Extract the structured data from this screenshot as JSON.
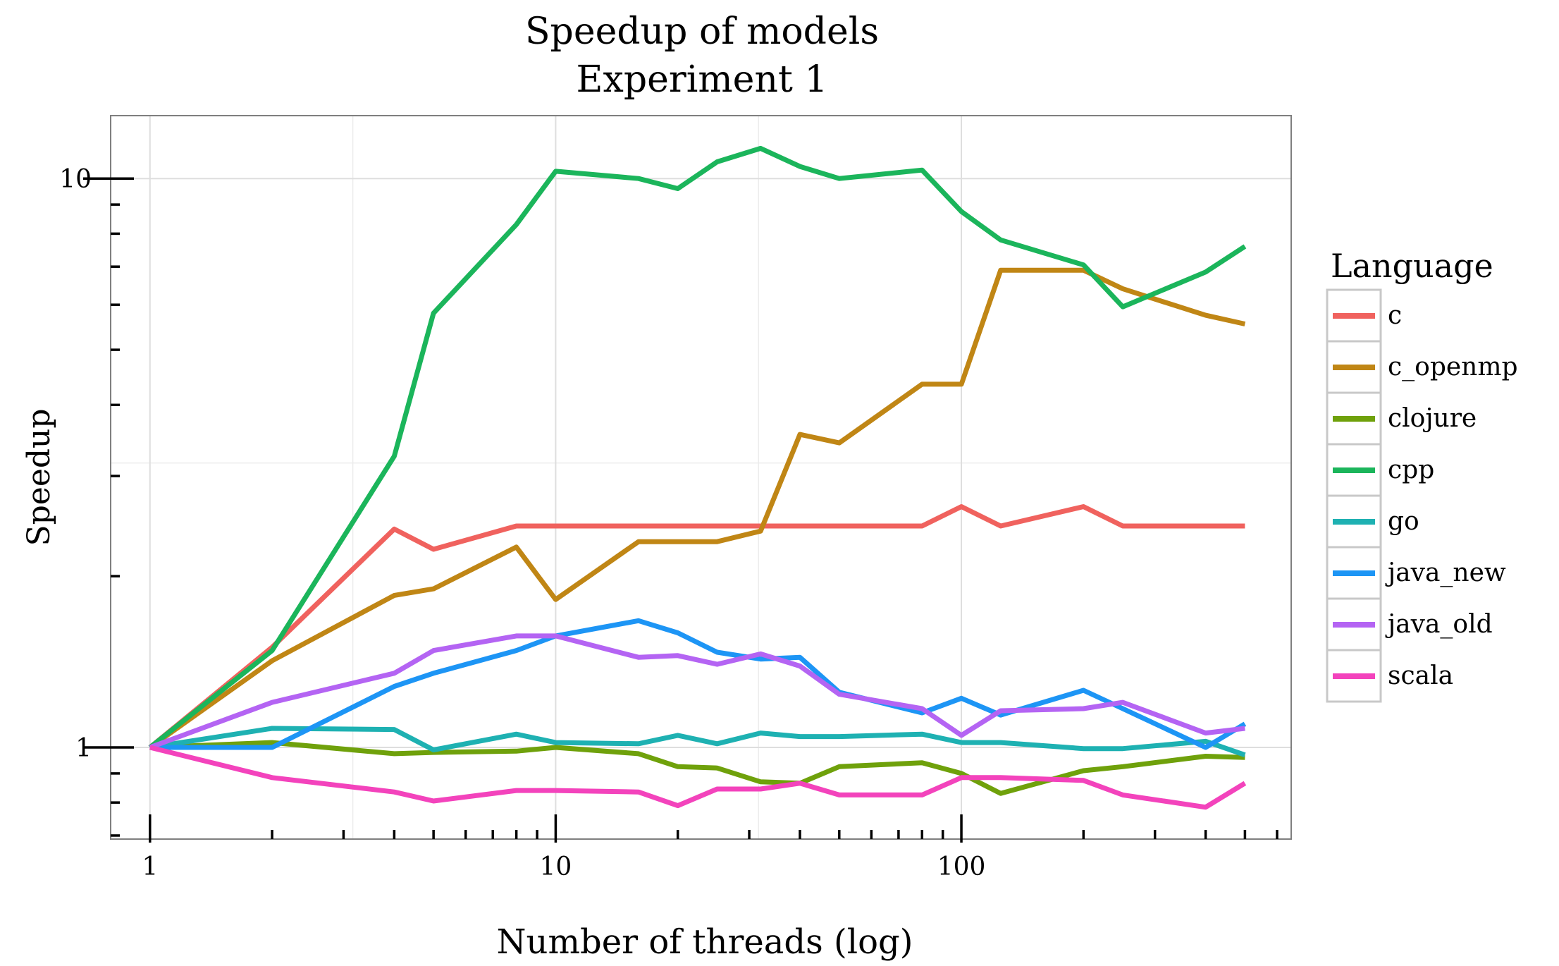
{
  "chart_data": {
    "type": "line",
    "title": "Speedup of models",
    "subtitle": "Experiment 1",
    "xlabel": "Number of threads (log)",
    "ylabel": "Speedup",
    "x_scale": "log",
    "y_scale": "log",
    "xlim": [
      0.8,
      650
    ],
    "ylim": [
      0.69,
      12.9
    ],
    "x_ticks": [
      1,
      10,
      100
    ],
    "x_tick_labels": [
      "1",
      "10",
      "100"
    ],
    "y_ticks": [
      1,
      10
    ],
    "y_tick_labels": [
      "1",
      "10"
    ],
    "grid": true,
    "legend": {
      "title": "Language",
      "position": "right"
    },
    "series": [
      {
        "name": "c",
        "color": "#F0625E",
        "x": [
          1,
          2,
          4,
          5,
          8,
          10,
          16,
          20,
          25,
          32,
          40,
          50,
          80,
          100,
          125,
          200,
          250,
          400,
          500
        ],
        "y": [
          1.0,
          1.5,
          2.42,
          2.23,
          2.45,
          2.45,
          2.45,
          2.45,
          2.45,
          2.45,
          2.45,
          2.45,
          2.45,
          2.65,
          2.45,
          2.65,
          2.45,
          2.45,
          2.45
        ]
      },
      {
        "name": "c_openmp",
        "color": "#C08615",
        "x": [
          1,
          2,
          4,
          5,
          8,
          10,
          16,
          20,
          25,
          32,
          40,
          50,
          80,
          100,
          125,
          200,
          250,
          400,
          500
        ],
        "y": [
          1.0,
          1.42,
          1.85,
          1.9,
          2.25,
          1.82,
          2.3,
          2.3,
          2.3,
          2.4,
          3.55,
          3.43,
          4.35,
          4.35,
          6.9,
          6.9,
          6.4,
          5.75,
          5.55
        ]
      },
      {
        "name": "clojure",
        "color": "#6FA10B",
        "x": [
          1,
          2,
          4,
          5,
          8,
          10,
          16,
          20,
          25,
          32,
          40,
          50,
          80,
          100,
          125,
          200,
          250,
          400,
          500
        ],
        "y": [
          1.0,
          1.02,
          0.975,
          0.98,
          0.985,
          1.0,
          0.975,
          0.925,
          0.92,
          0.87,
          0.865,
          0.925,
          0.94,
          0.9,
          0.83,
          0.91,
          0.925,
          0.965,
          0.96
        ]
      },
      {
        "name": "cpp",
        "color": "#1BB55B",
        "x": [
          1,
          2,
          4,
          5,
          8,
          10,
          16,
          20,
          25,
          32,
          40,
          50,
          80,
          100,
          125,
          200,
          250,
          400,
          500
        ],
        "y": [
          1.0,
          1.48,
          3.25,
          5.8,
          8.3,
          10.3,
          10.0,
          9.6,
          10.7,
          11.3,
          10.5,
          10.0,
          10.35,
          8.75,
          7.8,
          7.05,
          5.95,
          6.85,
          7.6
        ]
      },
      {
        "name": "go",
        "color": "#1EB1B2",
        "x": [
          1,
          2,
          4,
          5,
          8,
          10,
          16,
          20,
          25,
          32,
          40,
          50,
          80,
          100,
          125,
          200,
          250,
          400,
          500
        ],
        "y": [
          1.0,
          1.08,
          1.075,
          0.99,
          1.055,
          1.02,
          1.015,
          1.05,
          1.015,
          1.06,
          1.045,
          1.045,
          1.055,
          1.02,
          1.02,
          0.995,
          0.995,
          1.025,
          0.97
        ]
      },
      {
        "name": "java_new",
        "color": "#1D95F5",
        "x": [
          1,
          2,
          4,
          5,
          8,
          10,
          16,
          20,
          25,
          32,
          40,
          50,
          80,
          100,
          125,
          200,
          250,
          400,
          500
        ],
        "y": [
          1.0,
          1.0,
          1.28,
          1.35,
          1.48,
          1.57,
          1.67,
          1.59,
          1.47,
          1.43,
          1.44,
          1.25,
          1.15,
          1.22,
          1.14,
          1.26,
          1.17,
          1.0,
          1.1
        ]
      },
      {
        "name": "java_old",
        "color": "#B464F3",
        "x": [
          1,
          2,
          4,
          5,
          8,
          10,
          16,
          20,
          25,
          32,
          40,
          50,
          80,
          100,
          125,
          200,
          250,
          400,
          500
        ],
        "y": [
          1.0,
          1.2,
          1.35,
          1.48,
          1.57,
          1.57,
          1.44,
          1.45,
          1.4,
          1.46,
          1.39,
          1.24,
          1.17,
          1.05,
          1.16,
          1.17,
          1.2,
          1.06,
          1.08
        ]
      },
      {
        "name": "scala",
        "color": "#F343BC",
        "x": [
          1,
          2,
          4,
          5,
          8,
          10,
          16,
          20,
          25,
          32,
          40,
          50,
          80,
          100,
          125,
          200,
          250,
          400,
          500
        ],
        "y": [
          1.0,
          0.885,
          0.835,
          0.805,
          0.84,
          0.84,
          0.835,
          0.79,
          0.845,
          0.845,
          0.865,
          0.825,
          0.825,
          0.885,
          0.885,
          0.875,
          0.825,
          0.785,
          0.865
        ]
      }
    ]
  }
}
